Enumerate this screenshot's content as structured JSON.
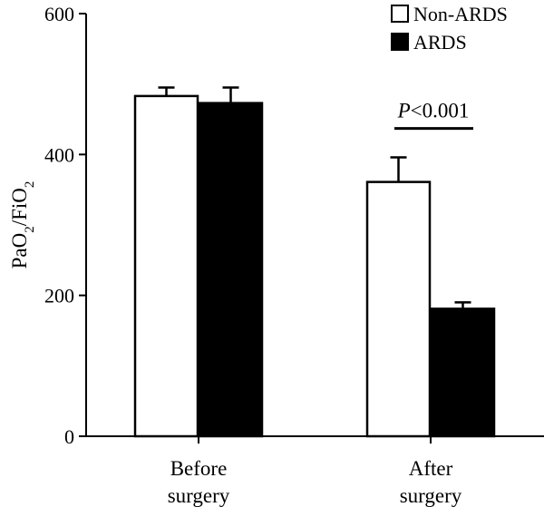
{
  "chart_data": {
    "type": "bar",
    "categories": [
      "Before\nsurgery",
      "After\nsurgery"
    ],
    "series": [
      {
        "name": "Non-ARDS",
        "values": [
          483,
          361
        ],
        "errors": [
          12,
          35
        ],
        "fill": "#ffffff",
        "stroke": "#000000"
      },
      {
        "name": "ARDS",
        "values": [
          473,
          181
        ],
        "errors": [
          22,
          9
        ],
        "fill": "#000000",
        "stroke": "#000000"
      }
    ],
    "ylabel": {
      "main": "PaO",
      "sub1": "2",
      "mid": "/FiO",
      "sub2": "2"
    },
    "ylim": [
      0,
      600
    ],
    "yticks": [
      0,
      200,
      400,
      600
    ],
    "grid": false,
    "legend_position": "top-right",
    "annotation": {
      "italic": "P",
      "rest": "<0.001",
      "category_index": 1,
      "bracket_y": 437
    }
  }
}
